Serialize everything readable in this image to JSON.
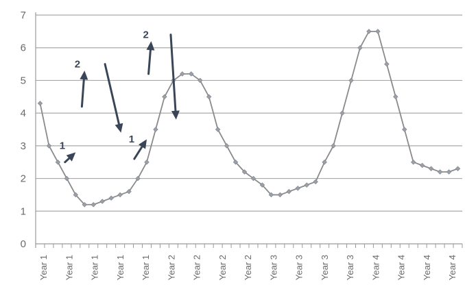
{
  "chart_data": {
    "type": "line",
    "title": "",
    "xlabel": "",
    "ylabel": "",
    "ylim": [
      0,
      7
    ],
    "yticks": [
      "0",
      "1",
      "2",
      "3",
      "4",
      "5",
      "6",
      "7"
    ],
    "grid": "horizontal",
    "legend": "none",
    "x_tick_labels": [
      "Year 1",
      "Year 1",
      "Year 1",
      "Year 1",
      "Year 1",
      "Year 2",
      "Year 2",
      "Year 2",
      "Year 2",
      "Year 3",
      "Year 3",
      "Year 3",
      "Year 3",
      "Year 4",
      "Year 4",
      "Year 4",
      "Year 4"
    ],
    "series": [
      {
        "color": "#8a8a8a",
        "marker_color": "#9aa0a6",
        "values": [
          4.3,
          3.0,
          2.5,
          2.0,
          1.5,
          1.2,
          1.2,
          1.3,
          1.4,
          1.5,
          1.6,
          2.0,
          2.5,
          3.5,
          4.5,
          5.0,
          5.2,
          5.2,
          5.0,
          4.5,
          3.5,
          3.0,
          2.5,
          2.2,
          2.0,
          1.8,
          1.5,
          1.5,
          1.6,
          1.7,
          1.8,
          1.9,
          2.5,
          3.0,
          4.0,
          5.0,
          6.0,
          6.5,
          6.5,
          5.5,
          4.5,
          3.5,
          2.5,
          2.4,
          2.3,
          2.2,
          2.2,
          2.3
        ]
      }
    ],
    "annotations": {
      "color": "#3a4658",
      "items": [
        {
          "label": "1",
          "from": [
            2.8,
            2.5
          ],
          "to": [
            4.0,
            2.8
          ]
        },
        {
          "label": "2",
          "from": [
            4.7,
            4.2
          ],
          "to": [
            5.0,
            5.3
          ]
        },
        {
          "label": "",
          "from": [
            7.3,
            5.5
          ],
          "to": [
            9.1,
            3.4
          ]
        },
        {
          "label": "1",
          "from": [
            10.6,
            2.6
          ],
          "to": [
            12.0,
            3.2
          ]
        },
        {
          "label": "2",
          "from": [
            12.2,
            5.2
          ],
          "to": [
            12.5,
            6.2
          ]
        },
        {
          "label": "",
          "from": [
            14.7,
            6.4
          ],
          "to": [
            15.3,
            3.8
          ]
        }
      ],
      "label_positions": [
        [
          2.5,
          2.9
        ],
        [
          4.2,
          5.4
        ],
        null,
        [
          10.3,
          3.1
        ],
        [
          11.9,
          6.3
        ],
        null
      ]
    }
  }
}
